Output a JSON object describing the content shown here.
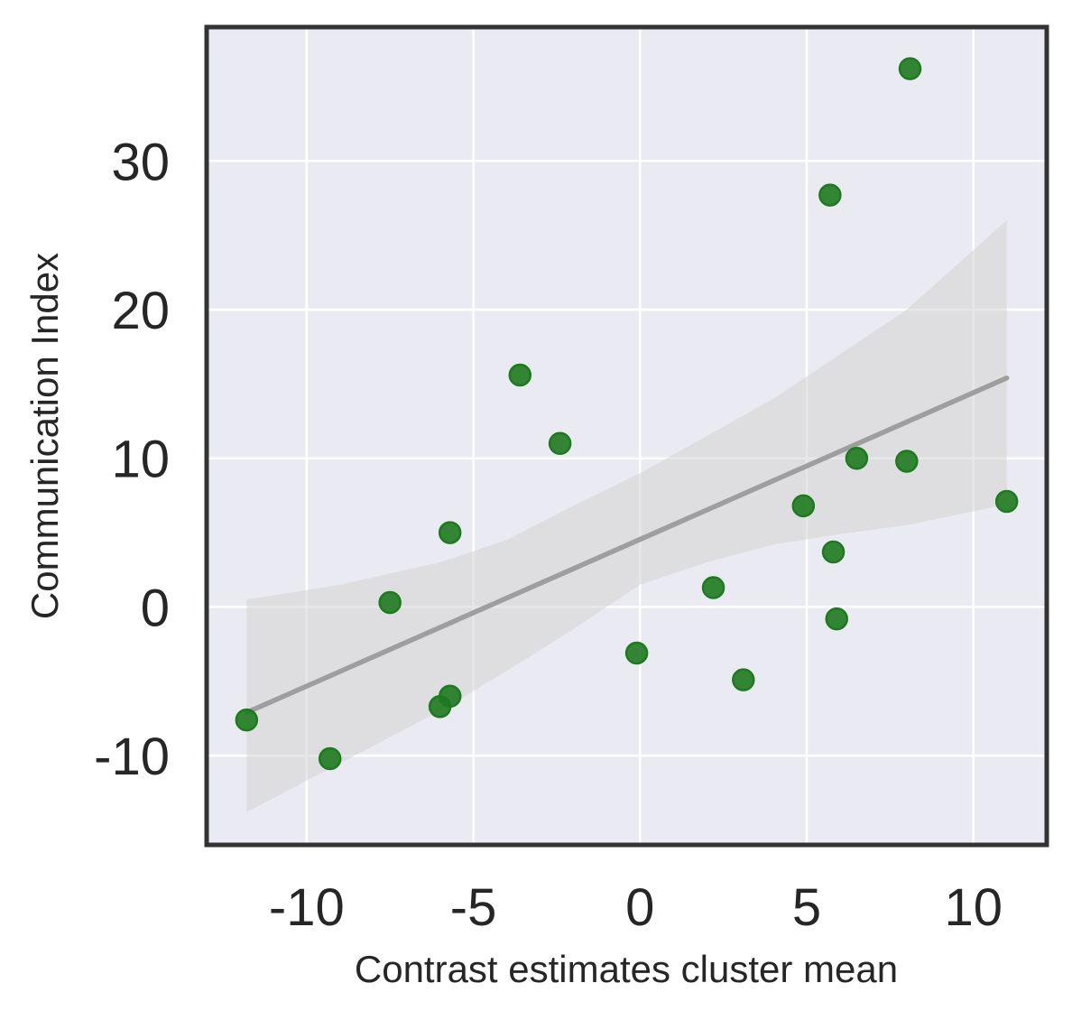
{
  "chart_data": {
    "type": "scatter",
    "title": "",
    "xlabel": "Contrast estimates cluster mean",
    "ylabel": "Communication Index",
    "xlim": [
      -13,
      12.2
    ],
    "ylim": [
      -16,
      39
    ],
    "xticks": [
      -10,
      -5,
      0,
      5,
      10
    ],
    "yticks": [
      -10,
      0,
      10,
      20,
      30
    ],
    "grid": true,
    "legend": "none",
    "colors": {
      "background": "#eaeaf2",
      "grid": "#ffffff",
      "frame": "#333333",
      "points": "#1e7a1e",
      "regression": "#9e9e9e",
      "ci_band": "#d4d4d4"
    },
    "points": [
      {
        "x": -11.8,
        "y": -7.6
      },
      {
        "x": -9.3,
        "y": -10.2
      },
      {
        "x": -7.5,
        "y": 0.3
      },
      {
        "x": -6.0,
        "y": -6.7
      },
      {
        "x": -5.7,
        "y": -6.0
      },
      {
        "x": -5.7,
        "y": 5.0
      },
      {
        "x": -3.6,
        "y": 15.6
      },
      {
        "x": -2.4,
        "y": 11.0
      },
      {
        "x": -0.1,
        "y": -3.1
      },
      {
        "x": 2.2,
        "y": 1.3
      },
      {
        "x": 3.1,
        "y": -4.9
      },
      {
        "x": 4.9,
        "y": 6.8
      },
      {
        "x": 5.7,
        "y": 27.7
      },
      {
        "x": 5.8,
        "y": 3.7
      },
      {
        "x": 5.9,
        "y": -0.8
      },
      {
        "x": 6.5,
        "y": 10.0
      },
      {
        "x": 8.0,
        "y": 9.8
      },
      {
        "x": 8.1,
        "y": 36.2
      },
      {
        "x": 11.0,
        "y": 7.1
      }
    ],
    "regression": {
      "x0": -11.8,
      "y0": -7.1,
      "x1": 11.0,
      "y1": 15.4
    },
    "ci_band": {
      "x": [
        -11.8,
        -9.0,
        -6.0,
        -4.0,
        -2.0,
        0.0,
        2.0,
        4.0,
        6.0,
        8.0,
        11.0
      ],
      "upper": [
        0.5,
        1.5,
        3.0,
        4.5,
        6.8,
        9.0,
        11.5,
        14.0,
        17.0,
        20.0,
        26.0
      ],
      "lower": [
        -13.8,
        -10.5,
        -7.0,
        -4.3,
        -1.5,
        1.5,
        3.0,
        4.2,
        4.9,
        5.5,
        6.9
      ]
    }
  }
}
